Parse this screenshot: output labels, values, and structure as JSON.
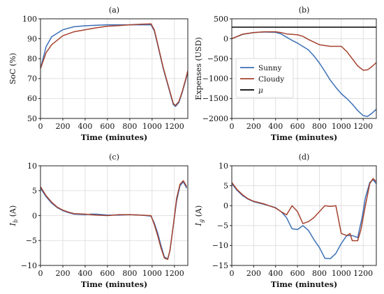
{
  "colors": {
    "sunny": "#3b6fb6",
    "cloudy": "#a5422f",
    "mu": "#000000"
  },
  "chart_data": [
    {
      "type": "line",
      "title": "(a)",
      "xlabel": "Time (minutes)",
      "ylabel": "SoC (%)",
      "xlim": [
        0,
        1320
      ],
      "ylim": [
        50,
        100
      ],
      "xticks": [
        "0",
        "200",
        "400",
        "600",
        "800",
        "1000",
        "1200"
      ],
      "yticks": [
        "50",
        "60",
        "70",
        "80",
        "90",
        "100"
      ],
      "grid": true,
      "series": [
        {
          "color": "sunny",
          "points": [
            [
              0,
              75
            ],
            [
              50,
              86
            ],
            [
              100,
              91
            ],
            [
              200,
              94.5
            ],
            [
              300,
              96
            ],
            [
              400,
              96.5
            ],
            [
              500,
              96.8
            ],
            [
              600,
              97
            ],
            [
              700,
              97
            ],
            [
              800,
              97
            ],
            [
              900,
              97
            ],
            [
              990,
              97
            ],
            [
              1020,
              94
            ],
            [
              1050,
              87
            ],
            [
              1100,
              75
            ],
            [
              1150,
              65
            ],
            [
              1190,
              57
            ],
            [
              1210,
              56
            ],
            [
              1240,
              58
            ],
            [
              1270,
              63
            ],
            [
              1300,
              69
            ],
            [
              1320,
              73
            ]
          ]
        },
        {
          "color": "cloudy",
          "points": [
            [
              0,
              75
            ],
            [
              50,
              83
            ],
            [
              100,
              87
            ],
            [
              200,
              91.5
            ],
            [
              300,
              93.5
            ],
            [
              400,
              94.5
            ],
            [
              500,
              95.5
            ],
            [
              600,
              96.3
            ],
            [
              700,
              96.6
            ],
            [
              800,
              97
            ],
            [
              900,
              97.3
            ],
            [
              990,
              97.5
            ],
            [
              1020,
              94.5
            ],
            [
              1050,
              87.5
            ],
            [
              1100,
              75.5
            ],
            [
              1150,
              65.5
            ],
            [
              1190,
              57.5
            ],
            [
              1210,
              56.5
            ],
            [
              1240,
              58.5
            ],
            [
              1270,
              63.5
            ],
            [
              1300,
              69.5
            ],
            [
              1320,
              74
            ]
          ]
        }
      ]
    },
    {
      "type": "line",
      "title": "(b)",
      "xlabel": "Time (minutes)",
      "ylabel": "Expenses (USD)",
      "xlim": [
        0,
        1320
      ],
      "ylim": [
        -2000,
        500
      ],
      "xticks": [
        "0",
        "200",
        "400",
        "600",
        "800",
        "1000",
        "1200"
      ],
      "yticks": [
        "500",
        "0",
        "−500",
        "−1000",
        "−1500",
        "−2000"
      ],
      "grid": true,
      "legend": {
        "position": "bottom-left",
        "entries": [
          "Sunny",
          "Cloudy",
          "μ"
        ]
      },
      "series": [
        {
          "name": "Sunny",
          "color": "sunny",
          "points": [
            [
              0,
              0
            ],
            [
              100,
              110
            ],
            [
              200,
              155
            ],
            [
              300,
              170
            ],
            [
              400,
              160
            ],
            [
              450,
              120
            ],
            [
              500,
              40
            ],
            [
              550,
              -40
            ],
            [
              600,
              -110
            ],
            [
              700,
              -280
            ],
            [
              750,
              -430
            ],
            [
              800,
              -610
            ],
            [
              850,
              -820
            ],
            [
              900,
              -1040
            ],
            [
              950,
              -1220
            ],
            [
              1000,
              -1380
            ],
            [
              1050,
              -1500
            ],
            [
              1100,
              -1640
            ],
            [
              1150,
              -1800
            ],
            [
              1200,
              -1930
            ],
            [
              1240,
              -1950
            ],
            [
              1280,
              -1870
            ],
            [
              1320,
              -1770
            ]
          ]
        },
        {
          "name": "Cloudy",
          "color": "cloudy",
          "points": [
            [
              0,
              0
            ],
            [
              100,
              115
            ],
            [
              200,
              155
            ],
            [
              300,
              175
            ],
            [
              400,
              175
            ],
            [
              450,
              155
            ],
            [
              500,
              120
            ],
            [
              600,
              100
            ],
            [
              650,
              60
            ],
            [
              700,
              -20
            ],
            [
              800,
              -150
            ],
            [
              900,
              -190
            ],
            [
              1000,
              -190
            ],
            [
              1050,
              -320
            ],
            [
              1100,
              -500
            ],
            [
              1150,
              -680
            ],
            [
              1200,
              -790
            ],
            [
              1240,
              -780
            ],
            [
              1280,
              -700
            ],
            [
              1320,
              -600
            ]
          ]
        },
        {
          "name": "μ",
          "color": "mu",
          "points": [
            [
              0,
              290
            ],
            [
              1320,
              290
            ]
          ]
        }
      ]
    },
    {
      "type": "line",
      "title": "(c)",
      "xlabel": "Time (minutes)",
      "ylabel": "I_b (A)",
      "xlim": [
        0,
        1320
      ],
      "ylim": [
        -10,
        10
      ],
      "xticks": [
        "0",
        "200",
        "400",
        "600",
        "800",
        "1000",
        "1200"
      ],
      "yticks": [
        "10",
        "5",
        "0",
        "−5",
        "−10"
      ],
      "grid": true,
      "series": [
        {
          "color": "sunny",
          "points": [
            [
              0,
              5.5
            ],
            [
              50,
              3.8
            ],
            [
              100,
              2.5
            ],
            [
              150,
              1.6
            ],
            [
              200,
              1.0
            ],
            [
              250,
              0.6
            ],
            [
              300,
              0.3
            ],
            [
              400,
              0.2
            ],
            [
              450,
              0.3
            ],
            [
              500,
              0.3
            ],
            [
              600,
              0.1
            ],
            [
              700,
              0.1
            ],
            [
              800,
              0.2
            ],
            [
              900,
              0.1
            ],
            [
              990,
              -0.1
            ],
            [
              1020,
              -1.5
            ],
            [
              1050,
              -3.5
            ],
            [
              1080,
              -6
            ],
            [
              1110,
              -8.3
            ],
            [
              1140,
              -8.7
            ],
            [
              1160,
              -7
            ],
            [
              1190,
              -2
            ],
            [
              1220,
              3
            ],
            [
              1250,
              6
            ],
            [
              1280,
              6.8
            ],
            [
              1310,
              5.5
            ]
          ]
        },
        {
          "color": "cloudy",
          "points": [
            [
              0,
              5.8
            ],
            [
              50,
              4
            ],
            [
              100,
              2.7
            ],
            [
              150,
              1.7
            ],
            [
              200,
              1.1
            ],
            [
              250,
              0.7
            ],
            [
              300,
              0.4
            ],
            [
              400,
              0.3
            ],
            [
              450,
              0.2
            ],
            [
              500,
              0.1
            ],
            [
              600,
              0
            ],
            [
              700,
              0.2
            ],
            [
              800,
              0.2
            ],
            [
              900,
              0.1
            ],
            [
              990,
              0
            ],
            [
              1020,
              -1.8
            ],
            [
              1050,
              -4
            ],
            [
              1080,
              -6.5
            ],
            [
              1110,
              -8.5
            ],
            [
              1140,
              -8.8
            ],
            [
              1160,
              -7
            ],
            [
              1190,
              -2
            ],
            [
              1220,
              3.5
            ],
            [
              1250,
              6.3
            ],
            [
              1280,
              7
            ],
            [
              1310,
              5.8
            ]
          ]
        }
      ]
    },
    {
      "type": "line",
      "title": "(d)",
      "xlabel": "Time (minutes)",
      "ylabel": "I_g (A)",
      "xlim": [
        0,
        1320
      ],
      "ylim": [
        -15,
        10
      ],
      "xticks": [
        "0",
        "200",
        "400",
        "600",
        "800",
        "1000",
        "1200"
      ],
      "yticks": [
        "10",
        "5",
        "0",
        "−5",
        "−10",
        "−15"
      ],
      "grid": true,
      "series": [
        {
          "color": "sunny",
          "points": [
            [
              0,
              5.5
            ],
            [
              50,
              3.8
            ],
            [
              100,
              2.5
            ],
            [
              150,
              1.6
            ],
            [
              200,
              1
            ],
            [
              300,
              0.3
            ],
            [
              400,
              -0.5
            ],
            [
              450,
              -1.5
            ],
            [
              500,
              -3
            ],
            [
              550,
              -5.8
            ],
            [
              600,
              -6
            ],
            [
              650,
              -5
            ],
            [
              700,
              -6.2
            ],
            [
              750,
              -8.5
            ],
            [
              800,
              -10.5
            ],
            [
              850,
              -13.2
            ],
            [
              900,
              -13.3
            ],
            [
              950,
              -12
            ],
            [
              1000,
              -9.5
            ],
            [
              1050,
              -7.5
            ],
            [
              1100,
              -7.5
            ],
            [
              1150,
              -8
            ],
            [
              1190,
              -3
            ],
            [
              1220,
              2
            ],
            [
              1260,
              5.8
            ],
            [
              1290,
              6.5
            ],
            [
              1320,
              5.5
            ]
          ]
        },
        {
          "color": "cloudy",
          "points": [
            [
              0,
              5.8
            ],
            [
              50,
              4
            ],
            [
              100,
              2.7
            ],
            [
              150,
              1.7
            ],
            [
              200,
              1.1
            ],
            [
              300,
              0.4
            ],
            [
              400,
              -0.6
            ],
            [
              450,
              -1.5
            ],
            [
              500,
              -2.3
            ],
            [
              550,
              0
            ],
            [
              600,
              -1.5
            ],
            [
              650,
              -4.5
            ],
            [
              700,
              -4
            ],
            [
              750,
              -3
            ],
            [
              800,
              -1.5
            ],
            [
              850,
              0
            ],
            [
              900,
              -0.2
            ],
            [
              950,
              0
            ],
            [
              1000,
              -7
            ],
            [
              1050,
              -7.5
            ],
            [
              1080,
              -7
            ],
            [
              1100,
              -8.8
            ],
            [
              1150,
              -8.8
            ],
            [
              1180,
              -6
            ],
            [
              1220,
              0
            ],
            [
              1260,
              5.5
            ],
            [
              1290,
              6.8
            ],
            [
              1320,
              6
            ]
          ]
        }
      ]
    }
  ]
}
